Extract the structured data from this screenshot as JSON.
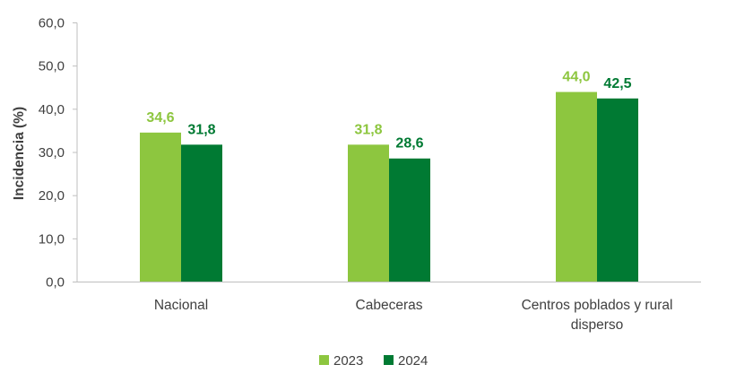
{
  "chart_data": {
    "type": "bar",
    "ylabel": "Incidencia (%)",
    "xlabel": "",
    "title": "",
    "ylim": [
      0,
      60
    ],
    "yticks": [
      "0,0",
      "10,0",
      "20,0",
      "30,0",
      "40,0",
      "50,0",
      "60,0"
    ],
    "ytick_values": [
      0,
      10,
      20,
      30,
      40,
      50,
      60
    ],
    "grid": false,
    "legend_position": "bottom",
    "categories": [
      [
        "Nacional"
      ],
      [
        "Cabeceras"
      ],
      [
        "Centros poblados y rural",
        "disperso"
      ]
    ],
    "series": [
      {
        "name": "2023",
        "color": "#8DC63F",
        "values": [
          34.6,
          31.8,
          44.0
        ],
        "labels": [
          "34,6",
          "31,8",
          "44,0"
        ]
      },
      {
        "name": "2024",
        "color": "#007A33",
        "values": [
          31.8,
          28.6,
          42.5
        ],
        "labels": [
          "31,8",
          "28,6",
          "42,5"
        ]
      }
    ]
  }
}
